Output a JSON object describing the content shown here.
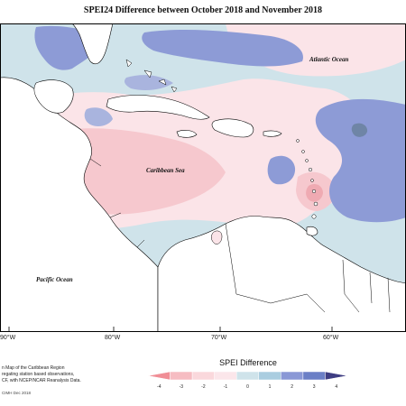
{
  "title": "SPEI24 Difference between October 2018 and November 2018",
  "labels": {
    "atlantic": "Atlantic Ocean",
    "caribbean": "Caribbean Sea",
    "pacific": "Pacific Ocean"
  },
  "lon_ticks": [
    "90°W",
    "80°W",
    "70°W",
    "60°W"
  ],
  "notes": [
    "n Map of the Caribbean Region",
    "regating station based observations,",
    "CF, with NCEP/NCAR Reanalysis Data."
  ],
  "credit": "CIMH Dec 2018",
  "legend": {
    "title": "SPEI Difference",
    "ticks": [
      "-4",
      "-3",
      "-2",
      "-1",
      "0",
      "1",
      "2",
      "3",
      "4"
    ],
    "colors": [
      "#f08e96",
      "#f6bcc2",
      "#fad8dc",
      "#fbe6ea",
      "#cfe3ea",
      "#aacde0",
      "#8a98d6",
      "#6b7fc6",
      "#3e3d82"
    ]
  },
  "palette": {
    "neutral": "#cfe3ea",
    "light_pink": "#fbe4e8",
    "pink": "#f6c8ce",
    "deep_pink": "#efaab2",
    "blue": "#8d9bd6",
    "mid_blue": "#a9b4de",
    "dark_blue": "#6f85a6",
    "land": "#ffffff",
    "coast": "#000000"
  }
}
